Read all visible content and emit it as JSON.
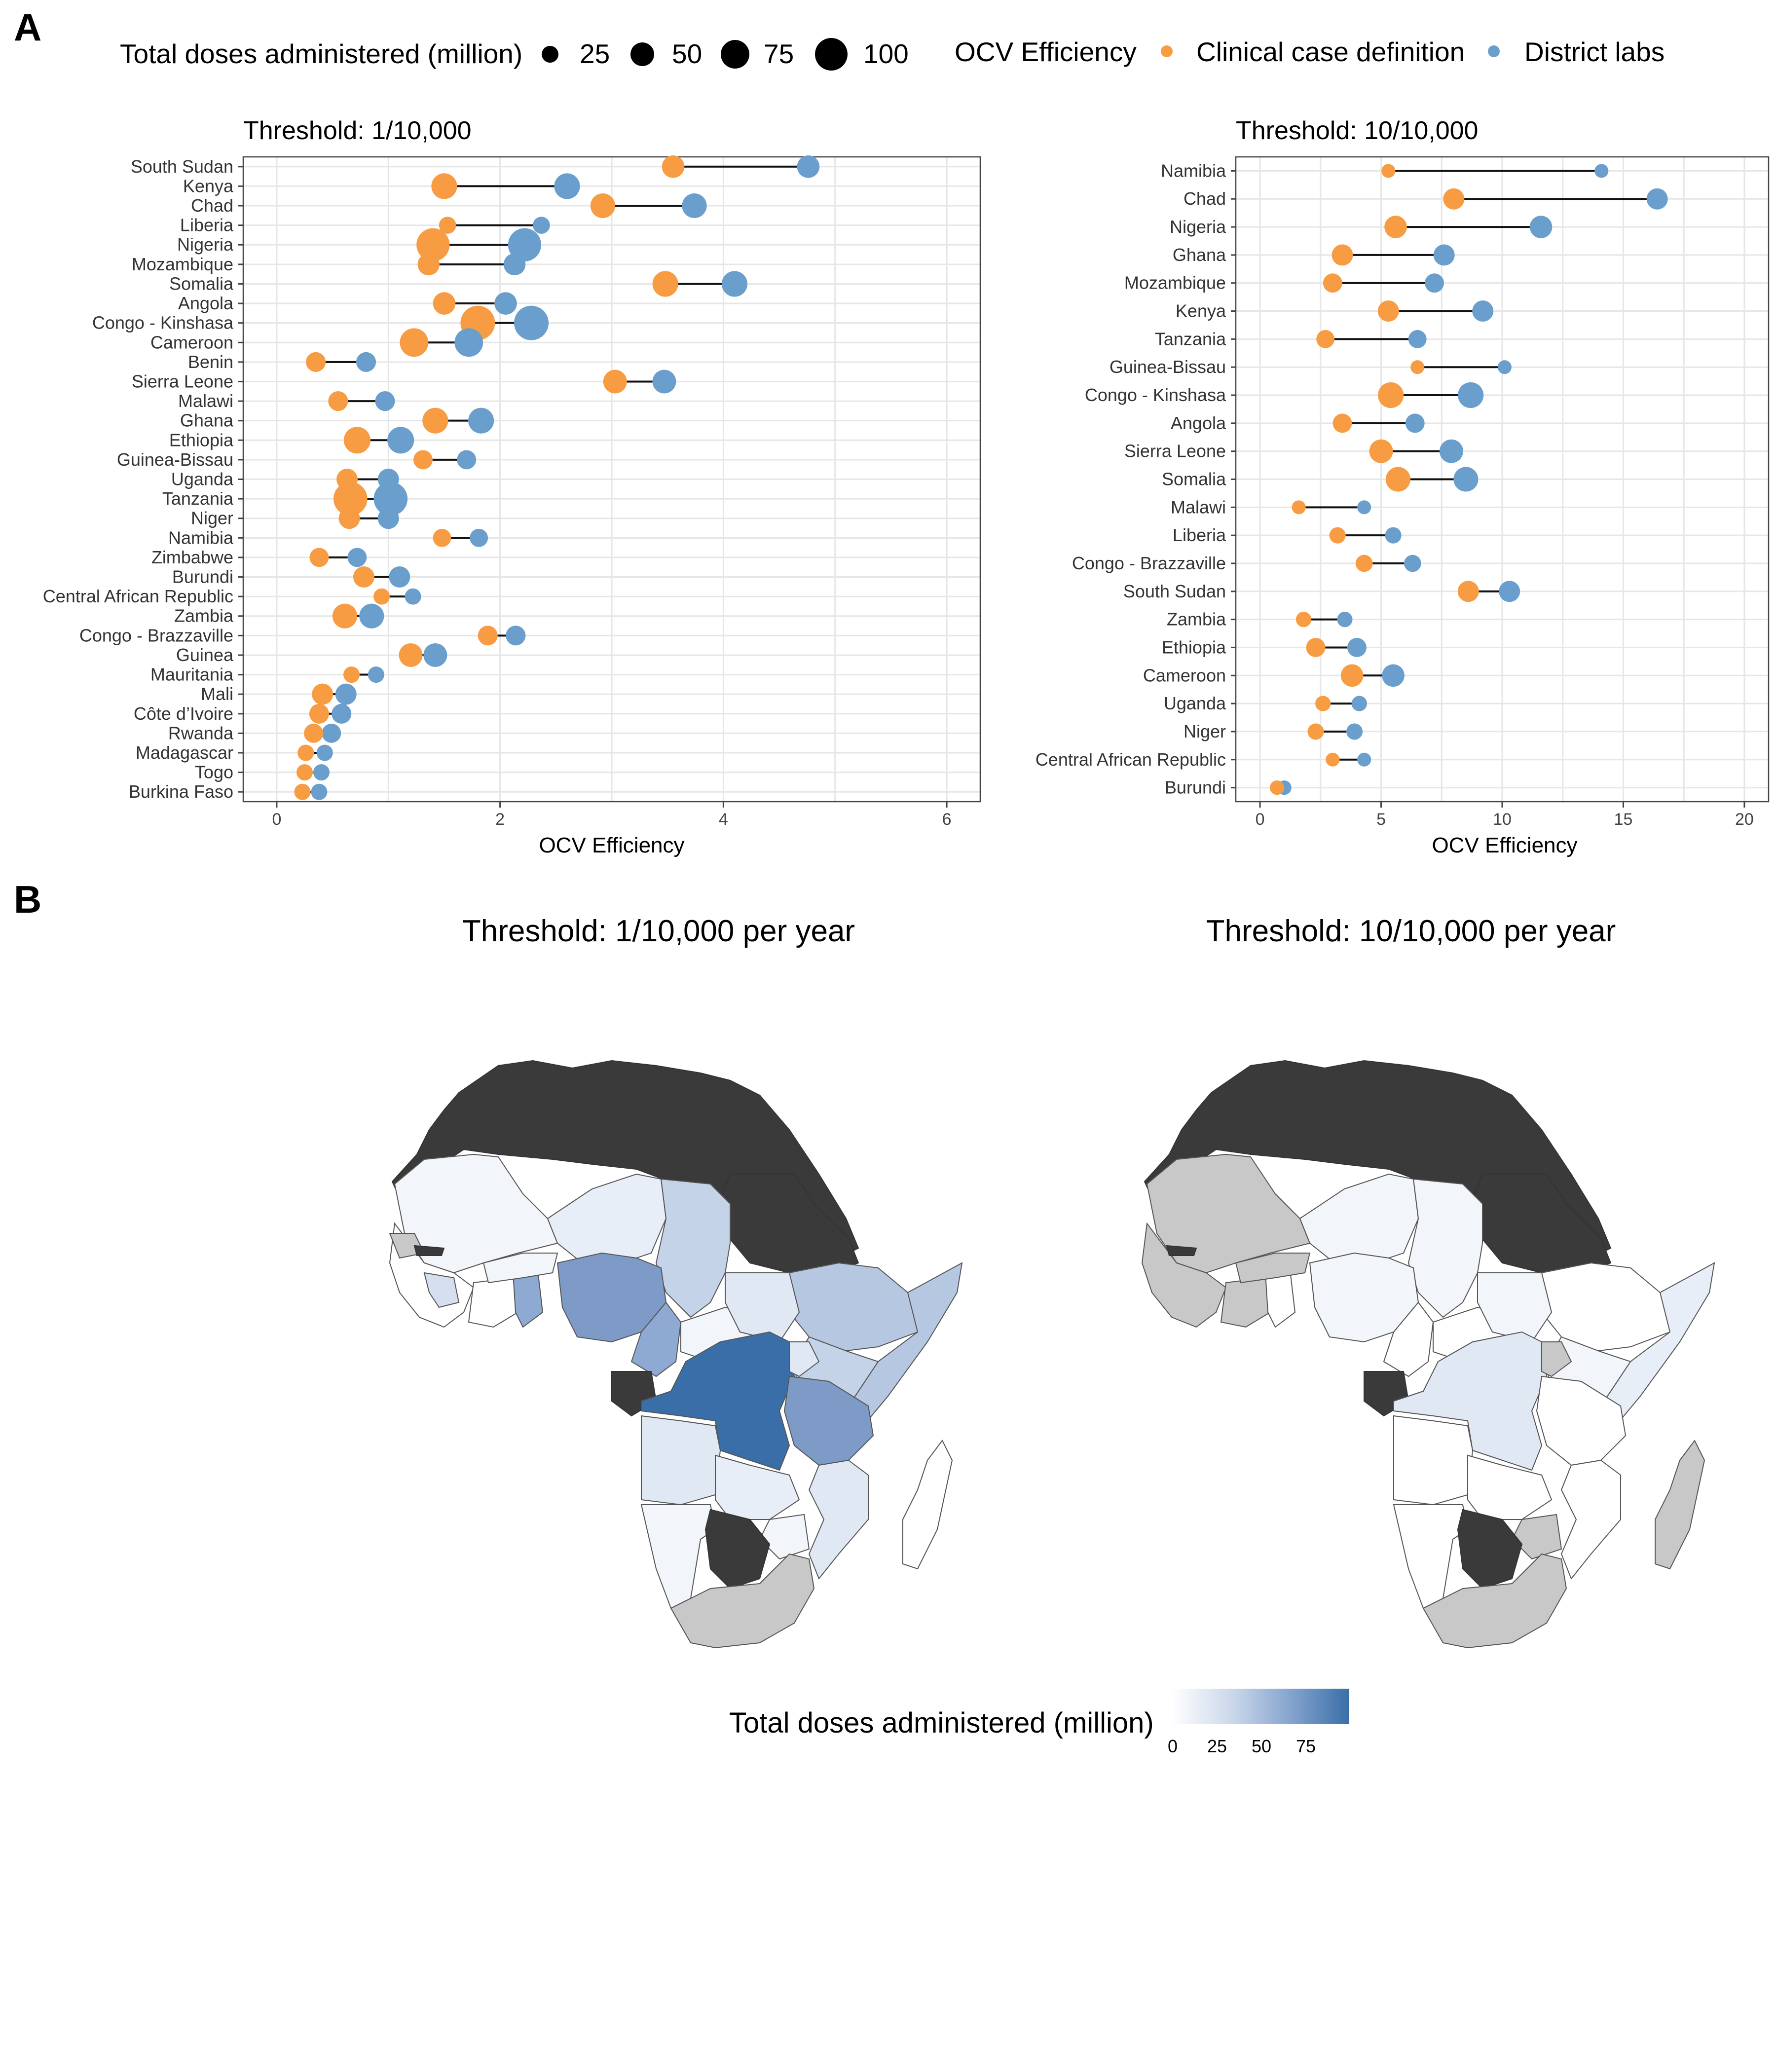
{
  "figure": {
    "panel_a_label": "A",
    "panel_b_label": "B"
  },
  "legend": {
    "size_title": "Total doses administered (million)",
    "size_values": [
      "25",
      "50",
      "75",
      "100"
    ],
    "color_title": "OCV Efficiency",
    "color_series": [
      {
        "name": "Clinical case definition",
        "color": "#F89C43"
      },
      {
        "name": "District labs",
        "color": "#6A9FCD"
      }
    ]
  },
  "colors": {
    "clinical": "#F89C43",
    "district": "#6A9FCD",
    "segment": "#111111",
    "grid": "#E6E6E6",
    "border": "#444444",
    "no_data_dark": "#3A3A3A",
    "no_data_grey": "#C8C8C8",
    "fill_low": "#FFFFFF",
    "fill_high": "#3A6EA8"
  },
  "map_panel": {
    "titles": [
      "Threshold: 1/10,000 per year",
      "Threshold: 10/10,000 per year"
    ],
    "colorbar": {
      "title": "Total doses administered (million)",
      "ticks": [
        "0",
        "25",
        "50",
        "75"
      ]
    }
  },
  "chart_data": [
    {
      "type": "dumbbell",
      "title": "Threshold: 1/10,000",
      "xlabel": "OCV Efficiency",
      "xlim": [
        -0.3,
        6.3
      ],
      "xticks": [
        0,
        2,
        4,
        6
      ],
      "size_variable": "Total doses administered (million)",
      "series_names": [
        "Clinical case definition",
        "District labs"
      ],
      "categories": [
        "South Sudan",
        "Kenya",
        "Chad",
        "Liberia",
        "Nigeria",
        "Mozambique",
        "Somalia",
        "Angola",
        "Congo - Kinshasa",
        "Cameroon",
        "Benin",
        "Sierra Leone",
        "Malawi",
        "Ghana",
        "Ethiopia",
        "Guinea-Bissau",
        "Uganda",
        "Tanzania",
        "Niger",
        "Namibia",
        "Zimbabwe",
        "Burundi",
        "Central African Republic",
        "Zambia",
        "Congo - Brazzaville",
        "Guinea",
        "Mauritania",
        "Mali",
        "Côte d’Ivoire",
        "Rwanda",
        "Madagascar",
        "Togo",
        "Burkina Faso"
      ],
      "clinical": [
        3.55,
        1.5,
        2.92,
        1.53,
        1.4,
        1.36,
        3.48,
        1.5,
        1.8,
        1.23,
        0.35,
        3.03,
        0.55,
        1.42,
        0.72,
        1.31,
        0.63,
        0.66,
        0.65,
        1.48,
        0.38,
        0.78,
        0.94,
        0.61,
        1.89,
        1.2,
        0.67,
        0.41,
        0.38,
        0.33,
        0.26,
        0.25,
        0.23
      ],
      "district": [
        4.76,
        2.6,
        3.74,
        2.37,
        2.22,
        2.13,
        4.1,
        2.05,
        2.28,
        1.72,
        0.8,
        3.47,
        0.97,
        1.83,
        1.11,
        1.7,
        1.0,
        1.02,
        1.0,
        1.81,
        0.72,
        1.1,
        1.22,
        0.85,
        2.14,
        1.42,
        0.89,
        0.62,
        0.58,
        0.49,
        0.43,
        0.4,
        0.38
      ],
      "doses": [
        30,
        45,
        40,
        12,
        90,
        28,
        45,
        30,
        100,
        60,
        20,
        35,
        20,
        45,
        50,
        18,
        25,
        95,
        25,
        15,
        18,
        25,
        10,
        40,
        20,
        35,
        10,
        25,
        20,
        18,
        10,
        10,
        10
      ]
    },
    {
      "type": "dumbbell",
      "title": "Threshold: 10/10,000",
      "xlabel": "OCV Efficiency",
      "xlim": [
        -1,
        21
      ],
      "xticks": [
        0,
        5,
        10,
        15,
        20
      ],
      "size_variable": "Total doses administered (million)",
      "series_names": [
        "Clinical case definition",
        "District labs"
      ],
      "categories": [
        "Namibia",
        "Chad",
        "Nigeria",
        "Ghana",
        "Mozambique",
        "Kenya",
        "Tanzania",
        "Guinea-Bissau",
        "Congo - Kinshasa",
        "Angola",
        "Sierra Leone",
        "Somalia",
        "Malawi",
        "Liberia",
        "Congo - Brazzaville",
        "South Sudan",
        "Zambia",
        "Ethiopia",
        "Cameroon",
        "Uganda",
        "Niger",
        "Central African Republic",
        "Burundi"
      ],
      "clinical": [
        5.3,
        8.0,
        5.6,
        3.4,
        3.0,
        5.3,
        2.7,
        6.5,
        5.4,
        3.4,
        5.0,
        5.7,
        1.6,
        3.2,
        4.3,
        8.6,
        1.8,
        2.3,
        3.8,
        2.6,
        2.3,
        3.0,
        0.7
      ],
      "district": [
        14.1,
        16.4,
        11.6,
        7.6,
        7.2,
        9.2,
        6.5,
        10.1,
        8.7,
        6.4,
        7.9,
        8.5,
        4.3,
        5.5,
        6.3,
        10.3,
        3.5,
        4.0,
        5.5,
        4.1,
        3.9,
        4.3,
        1.0
      ],
      "doses": [
        5,
        25,
        30,
        25,
        18,
        25,
        15,
        5,
        45,
        18,
        35,
        40,
        5,
        10,
        12,
        25,
        8,
        18,
        30,
        8,
        10,
        5,
        6
      ]
    }
  ]
}
